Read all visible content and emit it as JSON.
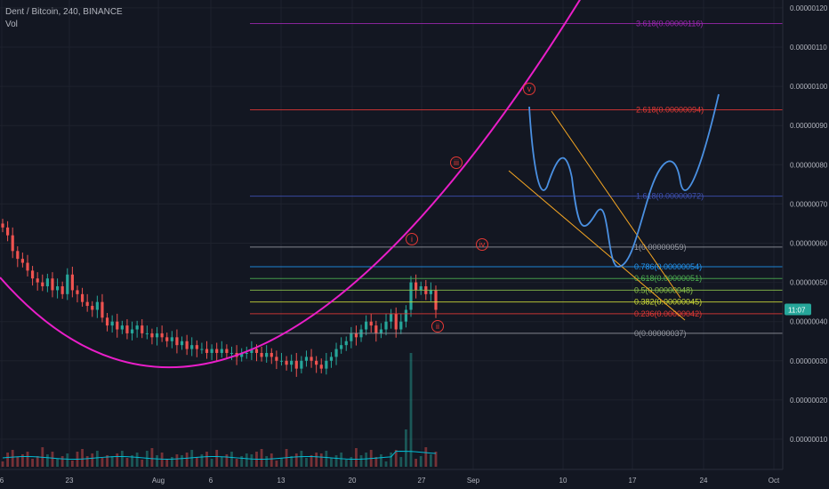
{
  "header": {
    "title": "Dent / Bitcoin, 240, BINANCE",
    "indicator": "Vol"
  },
  "price_axis": {
    "labels": [
      "0.00000120",
      "0.00000110",
      "0.00000100",
      "0.00000090",
      "0.00000080",
      "0.00000070",
      "0.00000060",
      "0.00000050",
      "0.00000040",
      "0.00000030",
      "0.00000020",
      "0.00000010"
    ],
    "values": [
      1.2,
      1.1,
      1.0,
      0.9,
      0.8,
      0.7,
      0.6,
      0.5,
      0.4,
      0.3,
      0.2,
      0.1
    ],
    "unit_note": "values in 1e-6 BTC",
    "current_time_badge": "11:07",
    "current_price": 0.43
  },
  "time_axis": {
    "labels": [
      "6",
      "23",
      "Aug",
      "6",
      "13",
      "20",
      "27",
      "Sep",
      "10",
      "17",
      "24",
      "Oct"
    ]
  },
  "chart_data": {
    "type": "candlestick",
    "colors": {
      "up": "#26a69a",
      "down": "#ef5350",
      "volume_ma": "#00bcd4",
      "arc": "#e91ec8",
      "projection": "#4a90e2",
      "channel": "#f5a623"
    },
    "candles_close": [
      0.64,
      0.62,
      0.58,
      0.56,
      0.55,
      0.53,
      0.51,
      0.5,
      0.49,
      0.51,
      0.48,
      0.49,
      0.47,
      0.52,
      0.48,
      0.47,
      0.45,
      0.44,
      0.43,
      0.45,
      0.41,
      0.39,
      0.4,
      0.38,
      0.39,
      0.37,
      0.38,
      0.39,
      0.37,
      0.37,
      0.36,
      0.37,
      0.36,
      0.35,
      0.36,
      0.34,
      0.35,
      0.33,
      0.34,
      0.33,
      0.33,
      0.32,
      0.33,
      0.32,
      0.33,
      0.32,
      0.32,
      0.31,
      0.32,
      0.32,
      0.33,
      0.32,
      0.31,
      0.32,
      0.31,
      0.3,
      0.3,
      0.29,
      0.3,
      0.28,
      0.3,
      0.31,
      0.3,
      0.29,
      0.28,
      0.3,
      0.31,
      0.33,
      0.34,
      0.35,
      0.37,
      0.36,
      0.38,
      0.4,
      0.39,
      0.37,
      0.38,
      0.4,
      0.42,
      0.38,
      0.4,
      0.43,
      0.5,
      0.48,
      0.49,
      0.47,
      0.48,
      0.43
    ],
    "fib_levels": [
      {
        "label": "3.618(0.00000116)",
        "price": 1.16,
        "color": "#9c27b0"
      },
      {
        "label": "2.618(0.00000094)",
        "price": 0.94,
        "color": "#e53935"
      },
      {
        "label": "1.618(0.00000072)",
        "price": 0.72,
        "color": "#3f51b5"
      },
      {
        "label": "1(0.00000059)",
        "price": 0.59,
        "color": "#9598a1"
      },
      {
        "label": "0.786(0.00000054)",
        "price": 0.54,
        "color": "#2196f3"
      },
      {
        "label": "0.618(0.00000051)",
        "price": 0.51,
        "color": "#4caf50"
      },
      {
        "label": "0.5(0.00000048)",
        "price": 0.48,
        "color": "#8bc34a"
      },
      {
        "label": "0.382(0.00000045)",
        "price": 0.45,
        "color": "#cddc39"
      },
      {
        "label": "0.236(0.00000042)",
        "price": 0.42,
        "color": "#e53935"
      },
      {
        "label": "0(0.00000037)",
        "price": 0.37,
        "color": "#9598a1"
      }
    ],
    "wave_labels": [
      "i",
      "ii",
      "iii",
      "iv",
      "v"
    ]
  }
}
